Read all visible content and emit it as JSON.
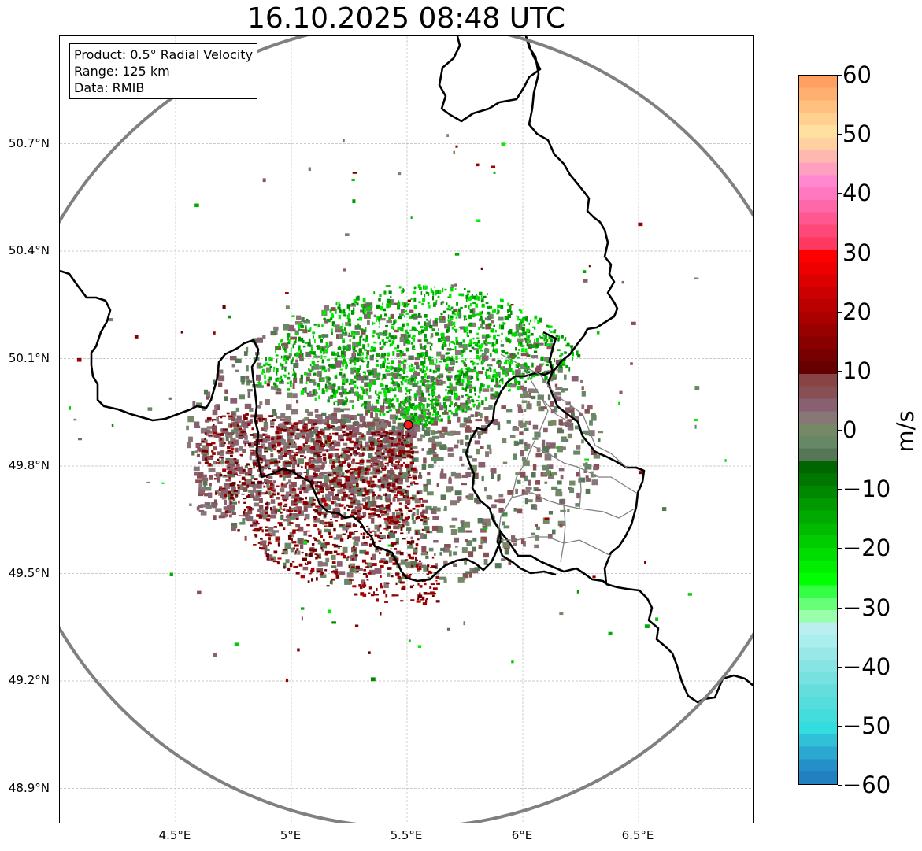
{
  "title": "16.10.2025 08:48 UTC",
  "info": {
    "product": "Product: 0.5° Radial Velocity",
    "range": "Range: 125 km",
    "source": "Data: RMIB"
  },
  "map": {
    "lon_range": [
      4.0,
      7.0
    ],
    "lat_range": [
      48.8,
      51.0
    ],
    "radar_site": {
      "lon": 5.505,
      "lat": 49.915
    },
    "range_km": 125,
    "lat_ticks": [
      {
        "value": 48.9,
        "label": "48.9°N"
      },
      {
        "value": 49.2,
        "label": "49.2°N"
      },
      {
        "value": 49.5,
        "label": "49.5°N"
      },
      {
        "value": 49.8,
        "label": "49.8°N"
      },
      {
        "value": 50.1,
        "label": "50.1°N"
      },
      {
        "value": 50.4,
        "label": "50.4°N"
      },
      {
        "value": 50.7,
        "label": "50.7°N"
      }
    ],
    "lon_ticks": [
      {
        "value": 4.5,
        "label": "4.5°E"
      },
      {
        "value": 5.0,
        "label": "5°E"
      },
      {
        "value": 5.5,
        "label": "5.5°E"
      },
      {
        "value": 6.0,
        "label": "6°E"
      },
      {
        "value": 6.5,
        "label": "6.5°E"
      }
    ]
  },
  "colorbar": {
    "unit": "m/s",
    "min": -60,
    "max": 60,
    "ticks": [
      {
        "value": 60,
        "label": "60"
      },
      {
        "value": 50,
        "label": "50"
      },
      {
        "value": 40,
        "label": "40"
      },
      {
        "value": 30,
        "label": "30"
      },
      {
        "value": 20,
        "label": "20"
      },
      {
        "value": 10,
        "label": "10"
      },
      {
        "value": 0,
        "label": "0"
      },
      {
        "value": -10,
        "label": "−10"
      },
      {
        "value": -20,
        "label": "−20"
      },
      {
        "value": -30,
        "label": "−30"
      },
      {
        "value": -40,
        "label": "−40"
      },
      {
        "value": -50,
        "label": "−50"
      },
      {
        "value": -60,
        "label": "−60"
      }
    ],
    "colors": [
      "#ffa060",
      "#ffb070",
      "#ffc080",
      "#ffd090",
      "#ffe0a0",
      "#ffd0a0",
      "#ffb8b0",
      "#ffa0c0",
      "#ff88d0",
      "#ff78c0",
      "#ff68a8",
      "#ff5890",
      "#ff4878",
      "#ff3860",
      "#ff0000",
      "#ee0000",
      "#dd0000",
      "#cc0000",
      "#bb0000",
      "#aa0000",
      "#990000",
      "#880000",
      "#770000",
      "#660000",
      "#884444",
      "#885055",
      "#886070",
      "#887777",
      "#778866",
      "#668866",
      "#557755",
      "#006600",
      "#007700",
      "#008800",
      "#009900",
      "#00aa00",
      "#00bb00",
      "#00cc00",
      "#00dd00",
      "#00ee00",
      "#00ff00",
      "#33ff44",
      "#66ff77",
      "#99ffaa",
      "#bbeeee",
      "#aaeeee",
      "#99e8e8",
      "#88e4e4",
      "#77e0e0",
      "#66dddd",
      "#55dddd",
      "#44dddd",
      "#33dddd",
      "#30c0d8",
      "#2aa8d0",
      "#2590c8",
      "#2080c0"
    ]
  }
}
